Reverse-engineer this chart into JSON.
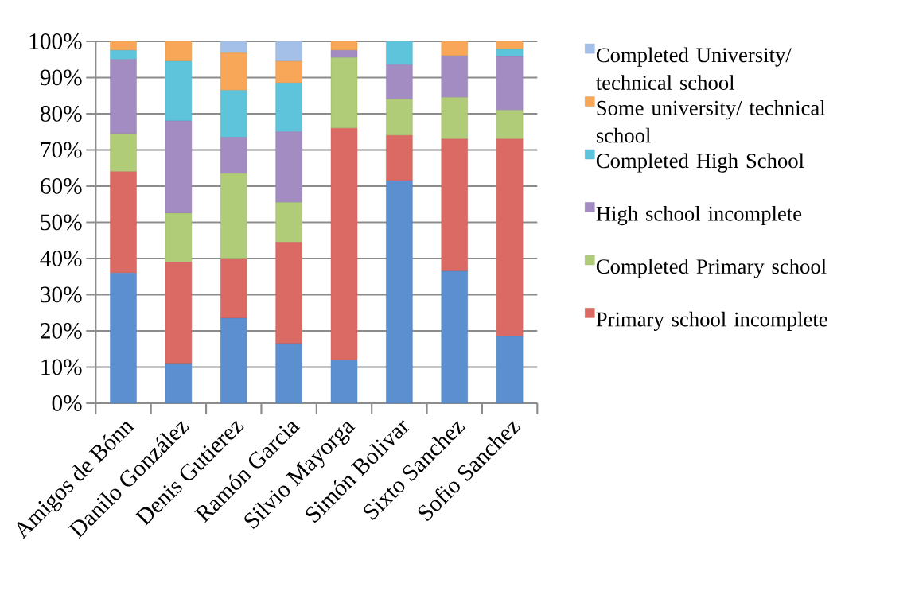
{
  "chart_data": {
    "type": "bar",
    "stacked": true,
    "categories": [
      "Amigos de Bónn",
      "Danilo González",
      "Denis Gutierez",
      "Ramón Garcia",
      "Silvio Mayorga",
      "Simón Bolivar",
      "Sixto Sanchez",
      "Sofio Sanchez"
    ],
    "series": [
      {
        "color": "#5b8fd0",
        "values": [
          36,
          11,
          23.5,
          16.5,
          12,
          61.5,
          36.5,
          18.5
        ]
      },
      {
        "name": "Primary school incomplete",
        "color": "#dc6a64",
        "values": [
          28,
          28,
          16.5,
          28,
          64,
          12.5,
          36.5,
          54.5
        ]
      },
      {
        "name": "Completed Primary school",
        "color": "#b0cc78",
        "values": [
          10.5,
          13.5,
          23.5,
          11,
          19.5,
          10,
          11.5,
          8
        ]
      },
      {
        "name": "High school incomplete",
        "color": "#a38cc2",
        "values": [
          20.5,
          25.5,
          10,
          19.5,
          2,
          9.5,
          11.5,
          14.8
        ]
      },
      {
        "name": "Completed High School",
        "color": "#5ec4dc",
        "values": [
          2.5,
          16.5,
          13,
          13.5,
          0,
          6.5,
          0,
          2
        ]
      },
      {
        "name": "Some university/ technical school",
        "color": "#f8a658",
        "values": [
          2.5,
          5.5,
          10.3,
          6,
          2.5,
          0,
          4,
          2.2
        ]
      },
      {
        "name": "Completed University/ technical school",
        "color": "#a5c0e8",
        "values": [
          0,
          0,
          3.2,
          5.5,
          0,
          0,
          0,
          0
        ]
      }
    ],
    "ylim": [
      0,
      100
    ],
    "yticks": [
      {
        "value": 0,
        "label": "0%"
      },
      {
        "value": 10,
        "label": "10%"
      },
      {
        "value": 20,
        "label": "20%"
      },
      {
        "value": 30,
        "label": "30%"
      },
      {
        "value": 40,
        "label": "40%"
      },
      {
        "value": 50,
        "label": "50%"
      },
      {
        "value": 60,
        "label": "60%"
      },
      {
        "value": 70,
        "label": "70%"
      },
      {
        "value": 80,
        "label": "80%"
      },
      {
        "value": 90,
        "label": "90%"
      },
      {
        "value": 100,
        "label": "100%"
      }
    ],
    "grid": "y",
    "legend": "right"
  }
}
